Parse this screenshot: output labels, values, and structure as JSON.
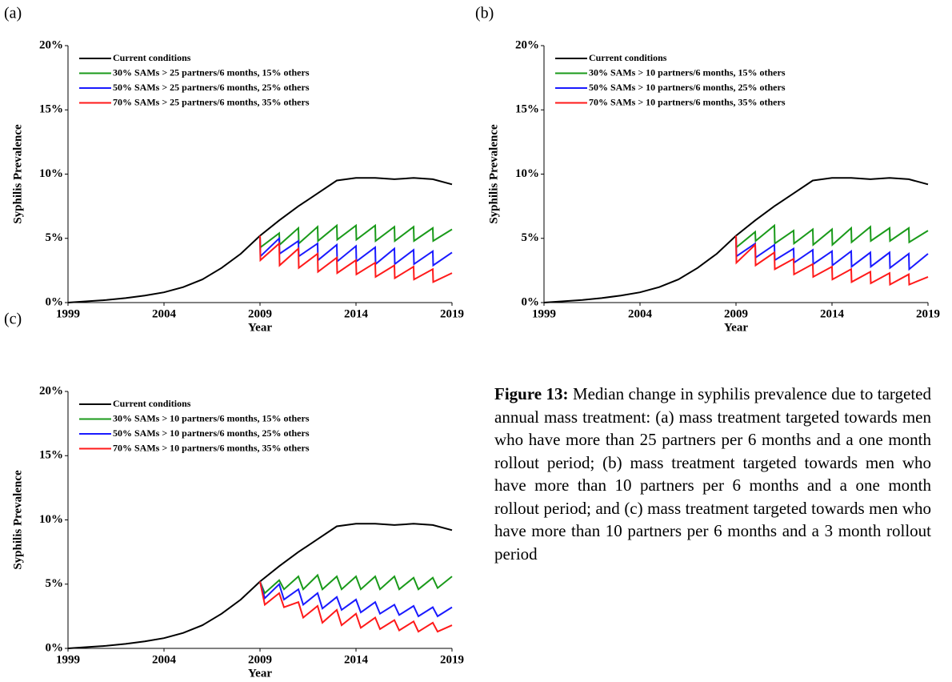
{
  "chart_data": [
    {
      "type": "line",
      "label": "(a)",
      "xlabel": "Year",
      "ylabel": "Syphilis Prevalence",
      "xlim": [
        1999,
        2019
      ],
      "xticks": [
        1999,
        2004,
        2009,
        2014,
        2019
      ],
      "ylim": [
        0,
        20
      ],
      "yticks": [
        {
          "value": 0,
          "label": "0%"
        },
        {
          "value": 5,
          "label": "5%"
        },
        {
          "value": 10,
          "label": "10%"
        },
        {
          "value": 15,
          "label": "15%"
        },
        {
          "value": 20,
          "label": "20%"
        }
      ],
      "legend": "upper left",
      "series": [
        {
          "name": "Current conditions",
          "color": "#000000",
          "x": [
            1999,
            2000,
            2001,
            2002,
            2003,
            2004,
            2005,
            2006,
            2007,
            2008,
            2009,
            2010,
            2011,
            2012,
            2013,
            2014,
            2015,
            2016,
            2017,
            2018,
            2019
          ],
          "values": [
            0,
            0.1,
            0.2,
            0.35,
            0.55,
            0.8,
            1.2,
            1.8,
            2.7,
            3.8,
            5.2,
            6.4,
            7.5,
            8.5,
            9.5,
            9.7,
            9.7,
            9.6,
            9.7,
            9.6,
            9.2
          ]
        },
        {
          "name": "30% SAMs > 25 partners/6 months, 15% others",
          "color": "#1a9a1a",
          "x": [
            2009,
            2009.02,
            2010,
            2010.02,
            2011,
            2011.02,
            2012,
            2012.02,
            2013,
            2013.02,
            2014,
            2014.02,
            2015,
            2015.02,
            2016,
            2016.02,
            2017,
            2017.02,
            2018,
            2018.02,
            2019
          ],
          "values": [
            5.2,
            4.3,
            5.4,
            4.5,
            5.8,
            4.6,
            5.9,
            4.8,
            6.0,
            4.9,
            6.0,
            4.9,
            6.0,
            4.8,
            5.9,
            4.8,
            5.9,
            4.8,
            5.8,
            4.8,
            5.7
          ]
        },
        {
          "name": "50% SAMs > 25 partners/6 months, 25% others",
          "color": "#1a1aff",
          "x": [
            2009,
            2009.02,
            2010,
            2010.02,
            2011,
            2011.02,
            2012,
            2012.02,
            2013,
            2013.02,
            2014,
            2014.02,
            2015,
            2015.02,
            2016,
            2016.02,
            2017,
            2017.02,
            2018,
            2018.02,
            2019
          ],
          "values": [
            5.2,
            3.6,
            5.0,
            3.8,
            4.8,
            3.6,
            4.6,
            3.3,
            4.5,
            3.2,
            4.4,
            3.2,
            4.3,
            3.0,
            4.2,
            3.0,
            4.1,
            3.0,
            4.0,
            2.9,
            3.9
          ]
        },
        {
          "name": "70% SAMs > 25 partners/6 months, 35% others",
          "color": "#ff1a1a",
          "x": [
            2009,
            2009.02,
            2010,
            2010.02,
            2011,
            2011.02,
            2012,
            2012.02,
            2013,
            2013.02,
            2014,
            2014.02,
            2015,
            2015.02,
            2016,
            2016.02,
            2017,
            2017.02,
            2018,
            2018.02,
            2019
          ],
          "values": [
            5.2,
            3.3,
            4.6,
            2.9,
            4.2,
            2.7,
            3.8,
            2.4,
            3.5,
            2.3,
            3.3,
            2.2,
            3.1,
            2.0,
            2.9,
            1.9,
            2.8,
            1.8,
            2.6,
            1.6,
            2.3
          ]
        }
      ]
    },
    {
      "type": "line",
      "label": "(b)",
      "xlabel": "Year",
      "ylabel": "Syphilis Prevalence",
      "xlim": [
        1999,
        2019
      ],
      "xticks": [
        1999,
        2004,
        2009,
        2014,
        2019
      ],
      "ylim": [
        0,
        20
      ],
      "yticks": [
        {
          "value": 0,
          "label": "0%"
        },
        {
          "value": 5,
          "label": "5%"
        },
        {
          "value": 10,
          "label": "10%"
        },
        {
          "value": 15,
          "label": "15%"
        },
        {
          "value": 20,
          "label": "20%"
        }
      ],
      "legend": "upper left",
      "series": [
        {
          "name": "Current conditions",
          "color": "#000000",
          "x": [
            1999,
            2000,
            2001,
            2002,
            2003,
            2004,
            2005,
            2006,
            2007,
            2008,
            2009,
            2010,
            2011,
            2012,
            2013,
            2014,
            2015,
            2016,
            2017,
            2018,
            2019
          ],
          "values": [
            0,
            0.1,
            0.2,
            0.35,
            0.55,
            0.8,
            1.2,
            1.8,
            2.7,
            3.8,
            5.2,
            6.4,
            7.5,
            8.5,
            9.5,
            9.7,
            9.7,
            9.6,
            9.7,
            9.6,
            9.2
          ]
        },
        {
          "name": "30% SAMs > 10 partners/6 months, 15% others",
          "color": "#1a9a1a",
          "x": [
            2009,
            2009.02,
            2010,
            2010.02,
            2011,
            2011.02,
            2012,
            2012.02,
            2013,
            2013.02,
            2014,
            2014.02,
            2015,
            2015.02,
            2016,
            2016.02,
            2017,
            2017.02,
            2018,
            2018.02,
            2019
          ],
          "values": [
            5.2,
            4.3,
            5.5,
            4.8,
            6.0,
            4.6,
            5.6,
            4.6,
            5.7,
            4.5,
            5.7,
            4.5,
            5.8,
            4.7,
            5.9,
            4.8,
            5.8,
            4.8,
            5.8,
            4.7,
            5.6
          ]
        },
        {
          "name": "50% SAMs > 10 partners/6 months, 25% others",
          "color": "#1a1aff",
          "x": [
            2009,
            2009.02,
            2010,
            2010.02,
            2011,
            2011.02,
            2012,
            2012.02,
            2013,
            2013.02,
            2014,
            2014.02,
            2015,
            2015.02,
            2016,
            2016.02,
            2017,
            2017.02,
            2018,
            2018.02,
            2019
          ],
          "values": [
            5.2,
            3.6,
            4.6,
            3.5,
            4.5,
            3.3,
            4.2,
            3.1,
            4.1,
            3.0,
            4.0,
            2.9,
            4.0,
            2.8,
            3.9,
            2.8,
            3.9,
            2.7,
            3.8,
            2.6,
            3.8
          ]
        },
        {
          "name": "70% SAMs > 10 partners/6 months, 35% others",
          "color": "#ff1a1a",
          "x": [
            2009,
            2009.02,
            2010,
            2010.02,
            2011,
            2011.02,
            2012,
            2012.02,
            2013,
            2013.02,
            2014,
            2014.02,
            2015,
            2015.02,
            2016,
            2016.02,
            2017,
            2017.02,
            2018,
            2018.02,
            2019
          ],
          "values": [
            5.2,
            3.1,
            4.5,
            2.9,
            3.9,
            2.6,
            3.4,
            2.2,
            3.0,
            2.0,
            2.8,
            1.8,
            2.6,
            1.6,
            2.4,
            1.5,
            2.3,
            1.4,
            2.2,
            1.4,
            2.0
          ]
        }
      ]
    },
    {
      "type": "line",
      "label": "(c)",
      "xlabel": "Year",
      "ylabel": "Syphilis Prevalence",
      "xlim": [
        1999,
        2019
      ],
      "xticks": [
        1999,
        2004,
        2009,
        2014,
        2019
      ],
      "ylim": [
        0,
        20
      ],
      "yticks": [
        {
          "value": 0,
          "label": "0%"
        },
        {
          "value": 5,
          "label": "5%"
        },
        {
          "value": 10,
          "label": "10%"
        },
        {
          "value": 15,
          "label": "15%"
        },
        {
          "value": 20,
          "label": "20%"
        }
      ],
      "legend": "upper left",
      "series": [
        {
          "name": "Current conditions",
          "color": "#000000",
          "x": [
            1999,
            2000,
            2001,
            2002,
            2003,
            2004,
            2005,
            2006,
            2007,
            2008,
            2009,
            2010,
            2011,
            2012,
            2013,
            2014,
            2015,
            2016,
            2017,
            2018,
            2019
          ],
          "values": [
            0,
            0.1,
            0.2,
            0.35,
            0.55,
            0.8,
            1.2,
            1.8,
            2.7,
            3.8,
            5.2,
            6.4,
            7.5,
            8.5,
            9.5,
            9.7,
            9.7,
            9.6,
            9.7,
            9.6,
            9.2
          ]
        },
        {
          "name": "30% SAMs > 10 partners/6 months, 15% others",
          "color": "#1a9a1a",
          "x": [
            2009,
            2009.25,
            2010,
            2010.25,
            2011,
            2011.25,
            2012,
            2012.25,
            2013,
            2013.25,
            2014,
            2014.25,
            2015,
            2015.25,
            2016,
            2016.25,
            2017,
            2017.25,
            2018,
            2018.25,
            2019
          ],
          "values": [
            5.2,
            4.3,
            5.3,
            4.6,
            5.6,
            4.6,
            5.7,
            4.6,
            5.6,
            4.6,
            5.6,
            4.6,
            5.6,
            4.6,
            5.6,
            4.6,
            5.5,
            4.6,
            5.5,
            4.7,
            5.6
          ]
        },
        {
          "name": "50% SAMs > 10 partners/6 months, 25% others",
          "color": "#1a1aff",
          "x": [
            2009,
            2009.25,
            2010,
            2010.25,
            2011,
            2011.25,
            2012,
            2012.25,
            2013,
            2013.25,
            2014,
            2014.25,
            2015,
            2015.25,
            2016,
            2016.25,
            2017,
            2017.25,
            2018,
            2018.25,
            2019
          ],
          "values": [
            5.2,
            3.9,
            5.0,
            3.8,
            4.6,
            3.4,
            4.3,
            3.1,
            4.0,
            3.0,
            3.8,
            2.8,
            3.6,
            2.7,
            3.4,
            2.6,
            3.3,
            2.5,
            3.2,
            2.5,
            3.2
          ]
        },
        {
          "name": "70% SAMs > 10 partners/6 months, 35% others",
          "color": "#ff1a1a",
          "x": [
            2009,
            2009.25,
            2010,
            2010.25,
            2011,
            2011.25,
            2012,
            2012.25,
            2013,
            2013.25,
            2014,
            2014.25,
            2015,
            2015.25,
            2016,
            2016.25,
            2017,
            2017.25,
            2018,
            2018.25,
            2019
          ],
          "values": [
            5.2,
            3.4,
            4.3,
            3.2,
            3.6,
            2.4,
            3.3,
            2.0,
            3.0,
            1.8,
            2.7,
            1.6,
            2.4,
            1.5,
            2.2,
            1.4,
            2.1,
            1.3,
            2.0,
            1.3,
            1.8
          ]
        }
      ]
    }
  ],
  "caption": {
    "label": "Figure 13:",
    "text": "Median change in syphilis prevalence due to targeted annual mass treatment: (a) mass treatment targeted towards men who have more than 25 partners per 6 months and a one month rollout period; (b) mass treatment targeted towards men who have more than 10 partners per 6 months and a one month rollout period; and (c) mass treatment targeted towards men who have more than 10 partners per 6 months and a 3 month rollout period"
  }
}
